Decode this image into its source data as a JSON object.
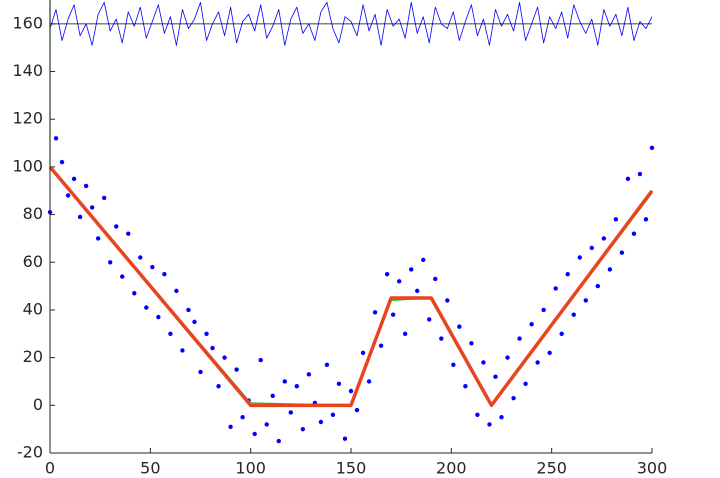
{
  "chart_data": {
    "type": "line",
    "xlim": [
      0,
      300
    ],
    "ylim": [
      -20,
      170
    ],
    "xticks": [
      0,
      50,
      100,
      150,
      200,
      250,
      300
    ],
    "yticks": [
      -20,
      0,
      20,
      40,
      60,
      80,
      100,
      120,
      140,
      160
    ],
    "x": [
      0,
      3,
      6,
      9,
      12,
      15,
      18,
      21,
      24,
      27,
      30,
      33,
      36,
      39,
      42,
      45,
      48,
      51,
      54,
      57,
      60,
      63,
      66,
      69,
      72,
      75,
      78,
      81,
      84,
      87,
      90,
      93,
      96,
      99,
      102,
      105,
      108,
      111,
      114,
      117,
      120,
      123,
      126,
      129,
      132,
      135,
      138,
      141,
      144,
      147,
      150,
      153,
      156,
      159,
      162,
      165,
      168,
      171,
      174,
      177,
      180,
      183,
      186,
      189,
      192,
      195,
      198,
      201,
      204,
      207,
      210,
      213,
      216,
      219,
      222,
      225,
      228,
      231,
      234,
      237,
      240,
      243,
      246,
      249,
      252,
      255,
      258,
      261,
      264,
      267,
      270,
      273,
      276,
      279,
      282,
      285,
      288,
      291,
      294,
      297,
      300
    ],
    "series": [
      {
        "color": "#0000ff",
        "mode": "markers",
        "values": [
          81,
          112,
          102,
          88,
          95,
          79,
          92,
          83,
          70,
          87,
          60,
          75,
          54,
          72,
          47,
          62,
          41,
          58,
          37,
          55,
          30,
          48,
          23,
          40,
          35,
          14,
          30,
          24,
          8,
          20,
          -9,
          15,
          -5,
          2,
          -12,
          19,
          -8,
          4,
          -15,
          10,
          -3,
          8,
          -10,
          13,
          1,
          -7,
          17,
          -4,
          9,
          -14,
          6,
          -2,
          22,
          10,
          39,
          25,
          55,
          38,
          52,
          30,
          57,
          48,
          61,
          36,
          53,
          28,
          44,
          17,
          33,
          8,
          26,
          -4,
          18,
          -8,
          12,
          -5,
          20,
          3,
          28,
          9,
          34,
          18,
          40,
          22,
          49,
          30,
          55,
          38,
          62,
          44,
          66,
          50,
          70,
          57,
          78,
          64,
          95,
          72,
          97,
          78,
          108
        ]
      },
      {
        "color": "#0000ff",
        "mode": "line",
        "width": 0.8,
        "values": [
          158,
          166,
          153,
          162,
          168,
          155,
          160,
          151,
          164,
          169,
          157,
          162,
          152,
          165,
          159,
          167,
          154,
          161,
          168,
          156,
          163,
          151,
          166,
          158,
          162,
          169,
          153,
          160,
          165,
          155,
          167,
          152,
          161,
          164,
          157,
          168,
          154,
          159,
          166,
          151,
          162,
          167,
          156,
          160,
          153,
          165,
          169,
          158,
          152,
          163,
          161,
          155,
          168,
          157,
          164,
          151,
          166,
          159,
          162,
          154,
          169,
          156,
          163,
          152,
          167,
          160,
          158,
          165,
          153,
          161,
          168,
          155,
          162,
          151,
          166,
          159,
          164,
          157,
          169,
          153,
          160,
          167,
          152,
          163,
          158,
          165,
          154,
          168,
          161,
          156,
          162,
          151,
          166,
          159,
          164,
          155,
          167,
          153,
          161,
          158,
          163
        ]
      },
      {
        "color": "#000000",
        "mode": "line",
        "width": 0.8,
        "x": [
          0,
          300
        ],
        "values": [
          160,
          160
        ]
      },
      {
        "color": "#22bb22",
        "mode": "line",
        "width": 1.2,
        "x": [
          0,
          0,
          100,
          150,
          170,
          190,
          220,
          300
        ],
        "values": [
          170,
          100,
          1,
          0,
          44,
          45,
          0,
          89
        ]
      },
      {
        "color": "#e8441f",
        "mode": "line",
        "width": 3.5,
        "x": [
          0,
          100,
          150,
          170,
          190,
          220,
          300
        ],
        "values": [
          100,
          0,
          0,
          45,
          45,
          0,
          90
        ]
      }
    ]
  }
}
